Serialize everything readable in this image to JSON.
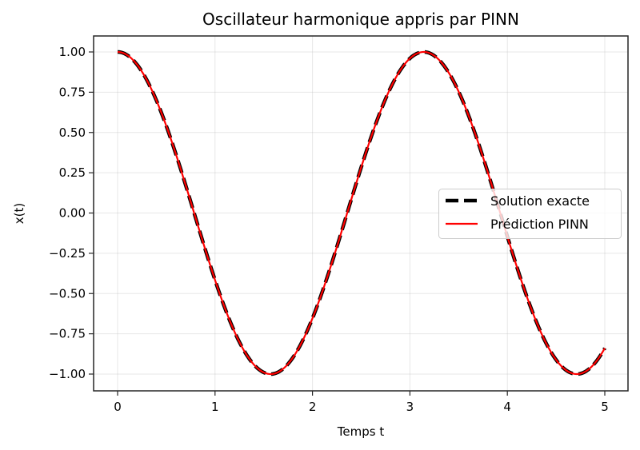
{
  "chart_data": {
    "type": "line",
    "title": "Oscillateur harmonique appris par PINN",
    "xlabel": "Temps t",
    "ylabel": "x(t)",
    "xlim": [
      -0.25,
      5.25
    ],
    "ylim": [
      -1.1,
      1.1
    ],
    "x_ticks": [
      0,
      1,
      2,
      3,
      4,
      5
    ],
    "x_tick_labels": [
      "0",
      "1",
      "2",
      "3",
      "4",
      "5"
    ],
    "y_ticks": [
      1.0,
      0.75,
      0.5,
      0.25,
      0.0,
      -0.25,
      -0.5,
      -0.75,
      -1.0
    ],
    "y_tick_labels": [
      "1.00",
      "0.75",
      "0.50",
      "0.25",
      "0.00",
      "−0.25",
      "−0.50",
      "−0.75",
      "−1.00"
    ],
    "grid": true,
    "legend_position": "center right",
    "x": [
      0,
      0.25,
      0.5,
      0.75,
      1.0,
      1.25,
      1.5,
      1.5708,
      1.75,
      2.0,
      2.25,
      2.5,
      2.75,
      3.0,
      3.1416,
      3.25,
      3.5,
      3.75,
      4.0,
      4.25,
      4.5,
      4.7124,
      4.75,
      5.0
    ],
    "series": [
      {
        "name": "Solution exacte",
        "style": "dashed",
        "color": "#000000",
        "values": [
          1.0,
          0.878,
          0.54,
          0.071,
          -0.416,
          -0.801,
          -0.99,
          -1.0,
          -0.936,
          -0.654,
          -0.211,
          0.284,
          0.709,
          0.96,
          1.0,
          0.977,
          0.754,
          0.347,
          -0.146,
          -0.602,
          -0.911,
          -1.0,
          -0.997,
          -0.839
        ]
      },
      {
        "name": "Prédiction PINN",
        "style": "solid",
        "color": "#ff0000",
        "values": [
          1.0,
          0.878,
          0.54,
          0.071,
          -0.416,
          -0.801,
          -0.99,
          -1.0,
          -0.936,
          -0.654,
          -0.211,
          0.284,
          0.709,
          0.96,
          1.0,
          0.977,
          0.754,
          0.347,
          -0.146,
          -0.602,
          -0.911,
          -1.0,
          -0.997,
          -0.839
        ]
      }
    ],
    "function_hint": "cos(2t)"
  },
  "legend": {
    "items": [
      {
        "label": "Solution exacte"
      },
      {
        "label": "Prédiction PINN"
      }
    ]
  }
}
